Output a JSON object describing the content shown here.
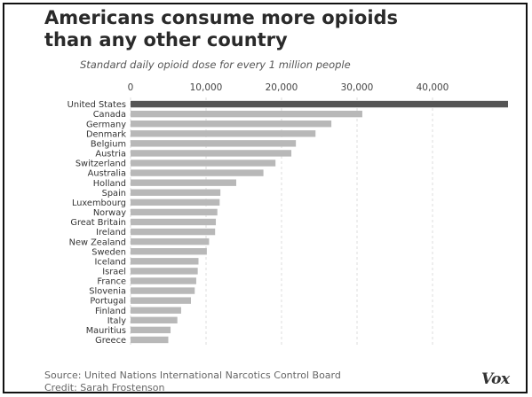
{
  "header": {
    "title_line1": "Americans consume more opioids",
    "title_line2": "than any other country",
    "subtitle": "Standard daily opioid dose for every 1 million people"
  },
  "footer": {
    "source": "Source: United Nations International Narcotics Control Board",
    "credit": "Credit: Sarah Frostenson",
    "logo": "Vox"
  },
  "colors": {
    "highlight": "#555555",
    "bar": "#b8b8b8",
    "grid": "#dddddd",
    "label": "#333333",
    "tick": "#444444"
  },
  "chart_data": {
    "type": "bar",
    "orientation": "horizontal",
    "title": "Americans consume more opioids than any other country",
    "subtitle": "Standard daily opioid dose for every 1 million people",
    "xlabel": "",
    "ylabel": "",
    "xlim": [
      0,
      50000
    ],
    "xticks": [
      0,
      10000,
      20000,
      30000,
      40000
    ],
    "xtick_labels": [
      "0",
      "10,000",
      "20,000",
      "30,000",
      "40,000"
    ],
    "grid": true,
    "highlight_category": "United States",
    "categories": [
      "United States",
      "Canada",
      "Germany",
      "Denmark",
      "Belgium",
      "Austria",
      "Switzerland",
      "Australia",
      "Holland",
      "Spain",
      "Luxembourg",
      "Norway",
      "Great Britain",
      "Ireland",
      "New Zealand",
      "Sweden",
      "Iceland",
      "Israel",
      "France",
      "Slovenia",
      "Portugal",
      "Finland",
      "Italy",
      "Mauritius",
      "Greece"
    ],
    "values": [
      50000,
      30700,
      26600,
      24500,
      21900,
      21300,
      19200,
      17600,
      14000,
      11900,
      11800,
      11500,
      11300,
      11200,
      10400,
      10100,
      9000,
      8900,
      8700,
      8500,
      8000,
      6700,
      6200,
      5300,
      5000
    ]
  }
}
